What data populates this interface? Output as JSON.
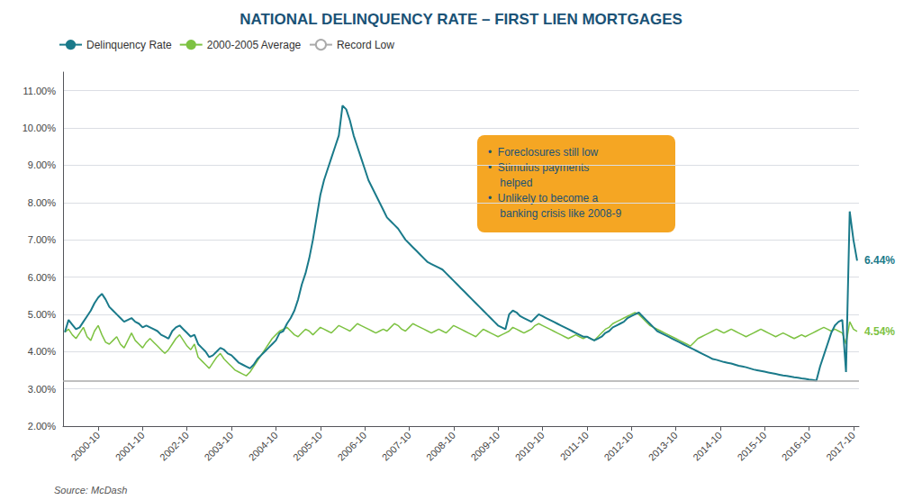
{
  "chart_data": {
    "type": "line",
    "title": "NATIONAL DELINQUENCY RATE – FIRST LIEN MORTGAGES",
    "categories": [
      null,
      null,
      null,
      null,
      null,
      null,
      null,
      null,
      null,
      "2000-10",
      null,
      null,
      null,
      null,
      null,
      null,
      null,
      null,
      null,
      null,
      null,
      "2001-10",
      null,
      null,
      null,
      null,
      null,
      null,
      null,
      null,
      null,
      null,
      null,
      "2002-10",
      null,
      null,
      null,
      null,
      null,
      null,
      null,
      null,
      null,
      null,
      null,
      "2003-10",
      null,
      null,
      null,
      null,
      null,
      null,
      null,
      null,
      null,
      null,
      null,
      "2004-10",
      null,
      null,
      null,
      null,
      null,
      null,
      null,
      null,
      null,
      null,
      null,
      "2005-10",
      null,
      null,
      null,
      null,
      null,
      null,
      null,
      null,
      null,
      null,
      null,
      "2006-10",
      null,
      null,
      null,
      null,
      null,
      null,
      null,
      null,
      null,
      null,
      null,
      "2007-10",
      null,
      null,
      null,
      null,
      null,
      null,
      null,
      null,
      null,
      null,
      null,
      "2008-10",
      null,
      null,
      null,
      null,
      null,
      null,
      null,
      null,
      null,
      null,
      null,
      "2009-10",
      null,
      null,
      null,
      null,
      null,
      null,
      null,
      null,
      null,
      null,
      null,
      "2010-10",
      null,
      null,
      null,
      null,
      null,
      null,
      null,
      null,
      null,
      null,
      null,
      "2011-10",
      null,
      null,
      null,
      null,
      null,
      null,
      null,
      null,
      null,
      null,
      null,
      "2012-10",
      null,
      null,
      null,
      null,
      null,
      null,
      null,
      null,
      null,
      null,
      null,
      "2013-10",
      null,
      null,
      null,
      null,
      null,
      null,
      null,
      null,
      null,
      null,
      null,
      "2014-10",
      null,
      null,
      null,
      null,
      null,
      null,
      null,
      null,
      null,
      null,
      null,
      "2015-10",
      null,
      null,
      null,
      null,
      null,
      null,
      null,
      null,
      null,
      null,
      null,
      "2016-10",
      null,
      null,
      null,
      null,
      null,
      null,
      null,
      null,
      null,
      null,
      null,
      "2017-10",
      null
    ],
    "series": [
      {
        "name": "Delinquency Rate",
        "color": "#1a7a8a",
        "end_label": "6.44%",
        "values": [
          4.52,
          4.85,
          4.72,
          4.6,
          4.65,
          4.8,
          4.95,
          5.1,
          5.3,
          5.45,
          5.55,
          5.4,
          5.2,
          5.1,
          5.0,
          4.9,
          4.8,
          4.85,
          4.9,
          4.8,
          4.75,
          4.65,
          4.7,
          4.65,
          4.6,
          4.55,
          4.45,
          4.4,
          4.35,
          4.55,
          4.65,
          4.7,
          4.6,
          4.5,
          4.4,
          4.45,
          4.2,
          4.1,
          4.0,
          3.85,
          3.9,
          4.0,
          4.1,
          4.05,
          3.95,
          3.9,
          3.8,
          3.7,
          3.65,
          3.6,
          3.55,
          3.65,
          3.8,
          3.9,
          4.0,
          4.1,
          4.2,
          4.3,
          4.5,
          4.55,
          4.75,
          4.9,
          5.1,
          5.4,
          5.8,
          6.1,
          6.5,
          7.0,
          7.6,
          8.2,
          8.6,
          8.9,
          9.2,
          9.5,
          9.8,
          10.6,
          10.5,
          10.2,
          9.8,
          9.5,
          9.2,
          8.9,
          8.6,
          8.4,
          8.2,
          8.0,
          7.8,
          7.6,
          7.5,
          7.4,
          7.3,
          7.15,
          7.0,
          6.9,
          6.8,
          6.7,
          6.6,
          6.5,
          6.4,
          6.35,
          6.3,
          6.25,
          6.2,
          6.1,
          6.0,
          5.9,
          5.8,
          5.7,
          5.6,
          5.5,
          5.4,
          5.3,
          5.2,
          5.1,
          5.0,
          4.9,
          4.8,
          4.7,
          4.65,
          4.6,
          5.0,
          5.1,
          5.05,
          4.95,
          4.9,
          4.85,
          4.8,
          4.9,
          5.0,
          4.95,
          4.9,
          4.85,
          4.8,
          4.75,
          4.7,
          4.65,
          4.6,
          4.55,
          4.5,
          4.45,
          4.4,
          4.4,
          4.35,
          4.3,
          4.35,
          4.4,
          4.5,
          4.55,
          4.65,
          4.7,
          4.75,
          4.8,
          4.9,
          4.95,
          5.0,
          5.05,
          4.95,
          4.85,
          4.75,
          4.65,
          4.55,
          4.5,
          4.45,
          4.4,
          4.35,
          4.3,
          4.25,
          4.2,
          4.15,
          4.1,
          4.05,
          4.0,
          3.95,
          3.9,
          3.85,
          3.8,
          3.78,
          3.75,
          3.72,
          3.7,
          3.68,
          3.65,
          3.62,
          3.6,
          3.58,
          3.55,
          3.52,
          3.5,
          3.48,
          3.46,
          3.44,
          3.42,
          3.4,
          3.38,
          3.36,
          3.35,
          3.33,
          3.31,
          3.3,
          3.28,
          3.27,
          3.25,
          3.24,
          3.22,
          3.6,
          3.9,
          4.2,
          4.5,
          4.7,
          4.8,
          4.85,
          3.45,
          7.76,
          7.0,
          6.44
        ]
      },
      {
        "name": "2000-2005 Average",
        "color": "#7dc242",
        "end_label": "4.54%",
        "values": [
          4.52,
          4.6,
          4.45,
          4.35,
          4.5,
          4.65,
          4.4,
          4.3,
          4.55,
          4.7,
          4.45,
          4.25,
          4.2,
          4.3,
          4.4,
          4.2,
          4.1,
          4.3,
          4.5,
          4.3,
          4.2,
          4.1,
          4.25,
          4.35,
          4.25,
          4.15,
          4.05,
          3.95,
          4.05,
          4.2,
          4.35,
          4.45,
          4.3,
          4.15,
          4.05,
          4.2,
          3.85,
          3.75,
          3.65,
          3.55,
          3.7,
          3.85,
          3.95,
          3.8,
          3.7,
          3.6,
          3.5,
          3.45,
          3.4,
          3.35,
          3.45,
          3.6,
          3.75,
          3.9,
          4.05,
          4.2,
          4.35,
          4.45,
          4.55,
          4.6,
          4.65,
          4.55,
          4.45,
          4.4,
          4.5,
          4.6,
          4.55,
          4.45,
          4.55,
          4.65,
          4.6,
          4.55,
          4.5,
          4.6,
          4.7,
          4.65,
          4.6,
          4.55,
          4.65,
          4.75,
          4.7,
          4.65,
          4.6,
          4.55,
          4.5,
          4.55,
          4.6,
          4.55,
          4.65,
          4.75,
          4.7,
          4.6,
          4.55,
          4.65,
          4.75,
          4.7,
          4.65,
          4.6,
          4.55,
          4.5,
          4.55,
          4.6,
          4.55,
          4.5,
          4.6,
          4.7,
          4.65,
          4.6,
          4.55,
          4.5,
          4.45,
          4.4,
          4.5,
          4.6,
          4.55,
          4.5,
          4.45,
          4.4,
          4.45,
          4.5,
          4.55,
          4.65,
          4.6,
          4.55,
          4.5,
          4.55,
          4.6,
          4.7,
          4.75,
          4.7,
          4.65,
          4.6,
          4.55,
          4.5,
          4.45,
          4.4,
          4.35,
          4.4,
          4.45,
          4.4,
          4.35,
          4.4,
          4.35,
          4.3,
          4.4,
          4.5,
          4.6,
          4.65,
          4.75,
          4.8,
          4.85,
          4.9,
          4.95,
          5.0,
          5.05,
          5.0,
          4.9,
          4.8,
          4.7,
          4.65,
          4.6,
          4.55,
          4.5,
          4.45,
          4.4,
          4.35,
          4.3,
          4.25,
          4.2,
          4.15,
          4.25,
          4.35,
          4.4,
          4.45,
          4.5,
          4.55,
          4.6,
          4.55,
          4.5,
          4.55,
          4.6,
          4.55,
          4.5,
          4.45,
          4.4,
          4.45,
          4.5,
          4.55,
          4.6,
          4.55,
          4.5,
          4.45,
          4.4,
          4.45,
          4.5,
          4.45,
          4.4,
          4.35,
          4.4,
          4.45,
          4.4,
          4.45,
          4.5,
          4.55,
          4.6,
          4.65,
          4.6,
          4.55,
          4.6,
          4.55,
          4.5,
          4.2,
          4.8,
          4.6,
          4.54
        ]
      },
      {
        "name": "Record Low",
        "type": "hline",
        "color": "#aaaaaa",
        "value": 3.22
      }
    ],
    "ylim": [
      2.0,
      11.5
    ],
    "yticks": [
      {
        "value": 2.0,
        "label": "2.00%"
      },
      {
        "value": 3.0,
        "label": "3.00%"
      },
      {
        "value": 4.0,
        "label": "4.00%"
      },
      {
        "value": 5.0,
        "label": "5.00%"
      },
      {
        "value": 6.0,
        "label": "6.00%"
      },
      {
        "value": 7.0,
        "label": "7.00%"
      },
      {
        "value": 8.0,
        "label": "8.00%"
      },
      {
        "value": 9.0,
        "label": "9.00%"
      },
      {
        "value": 10.0,
        "label": "10.00%"
      },
      {
        "value": 11.0,
        "label": "11.00%"
      }
    ],
    "grid": true,
    "legend": "upper left",
    "annotations": [
      "•  Foreclosures still low\n•  Stimulus payments\n    helped\n•  Unlikely to become a\n    banking crisis like 2008-9"
    ],
    "source": "Source: McDash"
  }
}
